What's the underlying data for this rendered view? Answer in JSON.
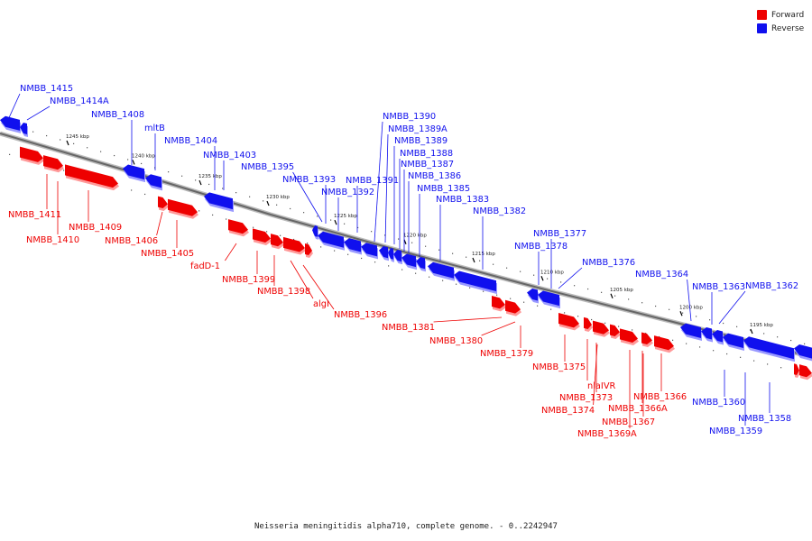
{
  "colors": {
    "forward": "#ee0000",
    "reverse": "#1010ee",
    "backbone": "#888888"
  },
  "legend": {
    "forward": "Forward",
    "reverse": "Reverse"
  },
  "caption": "Neisseria meningitidis alpha710, complete genome. - 0..2242947",
  "scale": {
    "ticks": [
      {
        "label": "1245 kbp",
        "kbp": 1245
      },
      {
        "label": "1240 kbp",
        "kbp": 1240
      },
      {
        "label": "1235 kbp",
        "kbp": 1235
      },
      {
        "label": "1230 kbp",
        "kbp": 1230
      },
      {
        "label": "1225 kbp",
        "kbp": 1225
      },
      {
        "label": "1220 kbp",
        "kbp": 1220
      },
      {
        "label": "1215 kbp",
        "kbp": 1215
      },
      {
        "label": "1210 kbp",
        "kbp": 1210
      },
      {
        "label": "1205 kbp",
        "kbp": 1205
      },
      {
        "label": "1200 kbp",
        "kbp": 1200
      },
      {
        "label": "1195 kbp",
        "kbp": 1195
      }
    ]
  },
  "genes": {
    "reverse": [
      "NMBB_1415",
      "NMBB_1414A",
      "NMBB_1408",
      "mltB",
      "NMBB_1404",
      "NMBB_1403",
      "NMBB_1395",
      "NMBB_1393",
      "NMBB_1392",
      "NMBB_1391",
      "NMBB_1390",
      "NMBB_1389A",
      "NMBB_1389",
      "NMBB_1388",
      "NMBB_1387",
      "NMBB_1386",
      "NMBB_1385",
      "NMBB_1383",
      "NMBB_1382",
      "NMBB_1377",
      "NMBB_1378",
      "NMBB_1376",
      "NMBB_1364",
      "NMBB_1363",
      "NMBB_1362",
      "NMBB_1360",
      "NMBB_1358",
      "NMBB_1359"
    ],
    "forward": [
      "NMBB_1411",
      "NMBB_1410",
      "NMBB_1409",
      "NMBB_1406",
      "NMBB_1405",
      "fadD-1",
      "NMBB_1399",
      "NMBB_1398",
      "algI",
      "NMBB_1396",
      "NMBB_1381",
      "NMBB_1380",
      "NMBB_1379",
      "NMBB_1375",
      "nlaIVR",
      "NMBB_1373",
      "NMBB_1374",
      "NMBB_1366",
      "NMBB_1366A",
      "NMBB_1367",
      "NMBB_1369A"
    ]
  }
}
